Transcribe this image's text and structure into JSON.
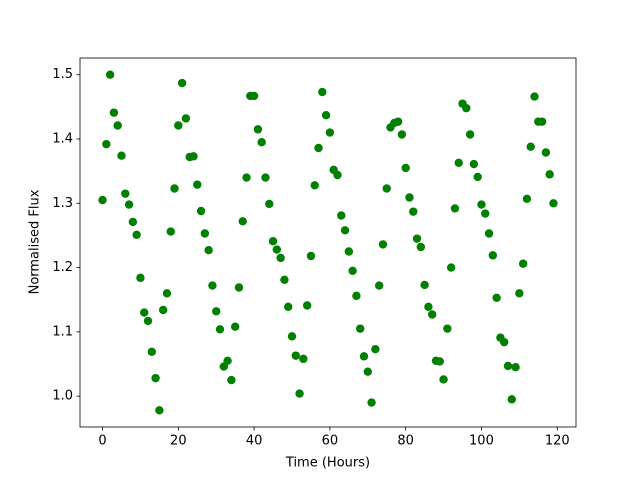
{
  "chart_data": {
    "type": "scatter",
    "xlabel": "Time (Hours)",
    "ylabel": "Normalised Flux",
    "color": "#008000",
    "x": [
      0,
      1,
      2,
      3,
      4,
      5,
      6,
      7,
      8,
      9,
      10,
      11,
      12,
      13,
      14,
      15,
      16,
      17,
      18,
      19,
      20,
      21,
      22,
      23,
      24,
      25,
      26,
      27,
      28,
      29,
      30,
      31,
      32,
      33,
      34,
      35,
      36,
      37,
      38,
      39,
      40,
      41,
      42,
      43,
      44,
      45,
      46,
      47,
      48,
      49,
      50,
      51,
      52,
      53,
      54,
      55,
      56,
      57,
      58,
      59,
      60,
      61,
      62,
      63,
      64,
      65,
      66,
      67,
      68,
      69,
      70,
      71,
      72,
      73,
      74,
      75,
      76,
      77,
      78,
      79,
      80,
      81,
      82,
      83,
      84,
      85,
      86,
      87,
      88,
      89,
      90,
      91,
      92,
      93,
      94,
      95,
      96,
      97,
      98,
      99,
      100,
      101,
      102,
      103,
      104,
      105,
      106,
      107,
      108,
      109,
      110,
      111,
      112,
      113,
      114,
      115,
      116,
      117,
      118,
      119
    ],
    "values": [
      1.305,
      1.392,
      1.5,
      1.441,
      1.421,
      1.374,
      1.315,
      1.298,
      1.271,
      1.251,
      1.184,
      1.13,
      1.117,
      1.069,
      1.028,
      0.978,
      1.134,
      1.16,
      1.256,
      1.323,
      1.421,
      1.487,
      1.432,
      1.372,
      1.373,
      1.329,
      1.288,
      1.253,
      1.227,
      1.172,
      1.132,
      1.104,
      1.046,
      1.055,
      1.025,
      1.108,
      1.169,
      1.272,
      1.34,
      1.467,
      1.467,
      1.415,
      1.395,
      1.34,
      1.299,
      1.241,
      1.228,
      1.215,
      1.181,
      1.139,
      1.093,
      1.063,
      1.004,
      1.058,
      1.141,
      1.218,
      1.328,
      1.386,
      1.473,
      1.437,
      1.41,
      1.352,
      1.344,
      1.281,
      1.258,
      1.225,
      1.195,
      1.156,
      1.105,
      1.062,
      1.038,
      0.99,
      1.073,
      1.172,
      1.236,
      1.323,
      1.418,
      1.425,
      1.427,
      1.407,
      1.355,
      1.309,
      1.287,
      1.245,
      1.232,
      1.173,
      1.139,
      1.127,
      1.055,
      1.054,
      1.026,
      1.105,
      1.2,
      1.292,
      1.363,
      1.455,
      1.448,
      1.407,
      1.361,
      1.341,
      1.298,
      1.284,
      1.253,
      1.219,
      1.153,
      1.091,
      1.084,
      1.047,
      0.995,
      1.045,
      1.16,
      1.206,
      1.307,
      1.388,
      1.466,
      1.427,
      1.427,
      1.379,
      1.345,
      1.3
    ],
    "xlim": [
      -5.95,
      124.95
    ],
    "ylim": [
      0.952,
      1.526
    ],
    "xticks": [
      0,
      20,
      40,
      60,
      80,
      100,
      120
    ],
    "yticks": [
      {
        "value": 1,
        "label": "1.0"
      },
      1.1,
      1.2,
      1.3,
      1.4,
      1.5
    ]
  }
}
